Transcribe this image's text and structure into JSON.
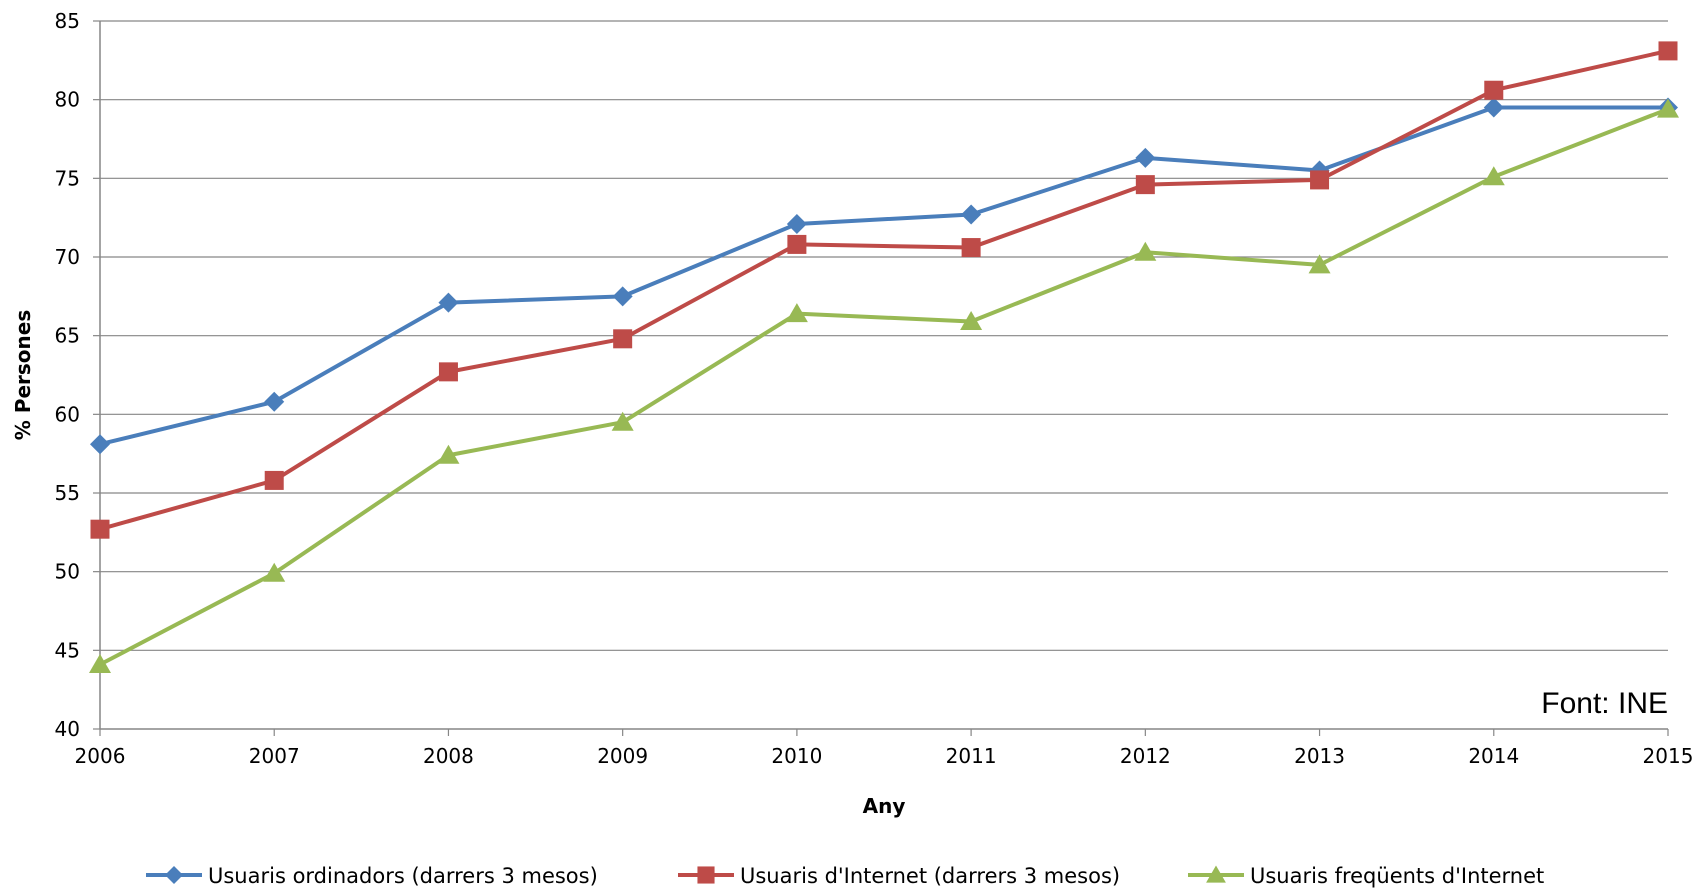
{
  "chart_data": {
    "type": "line",
    "title": "",
    "xlabel": "Any",
    "ylabel": "% Persones",
    "x": [
      "2006",
      "2007",
      "2008",
      "2009",
      "2010",
      "2011",
      "2012",
      "2013",
      "2014",
      "2015"
    ],
    "ylim": [
      40,
      85
    ],
    "yticks": [
      "40",
      "45",
      "50",
      "55",
      "60",
      "65",
      "70",
      "75",
      "80",
      "85"
    ],
    "grid": "horizontal",
    "legend_position": "bottom",
    "series": [
      {
        "name": "Usuaris ordinadors (darrers 3 mesos)",
        "color": "#4a7ebb",
        "marker": "diamond",
        "values": [
          58.1,
          60.8,
          67.1,
          67.5,
          72.1,
          72.7,
          76.3,
          75.5,
          79.5,
          79.5
        ]
      },
      {
        "name": "Usuaris d'Internet (darrers 3 mesos)",
        "color": "#be4b48",
        "marker": "square",
        "values": [
          52.7,
          55.8,
          62.7,
          64.8,
          70.8,
          70.6,
          74.6,
          74.9,
          80.6,
          83.1
        ]
      },
      {
        "name": "Usuaris freqüents d'Internet",
        "color": "#98b954",
        "marker": "triangle",
        "values": [
          44.1,
          49.9,
          57.4,
          59.5,
          66.4,
          65.9,
          70.3,
          69.5,
          75.1,
          79.4
        ]
      }
    ],
    "annotation": "Font: INE"
  }
}
